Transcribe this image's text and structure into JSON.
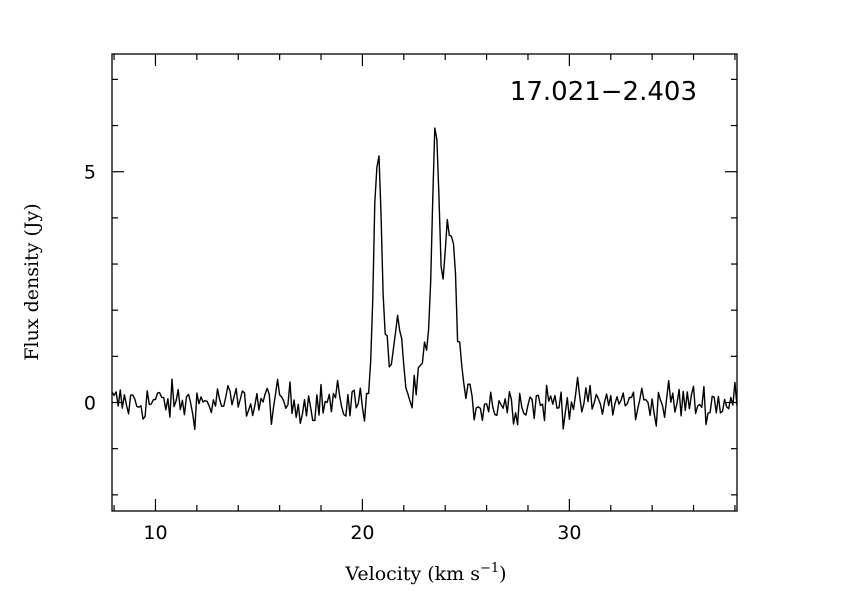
{
  "chart_data": {
    "type": "line",
    "annotation": "17.021−2.403",
    "xlabel": "Velocity (km s",
    "xlabel_sup": "−1",
    "xlabel_end": ")",
    "ylabel": "Flux density (Jy)",
    "xlim": [
      7.9,
      38.1
    ],
    "ylim": [
      -2.35,
      7.55
    ],
    "x_ticks": [
      10,
      20,
      30
    ],
    "x_tick_labels": [
      "10",
      "20",
      "30"
    ],
    "y_ticks": [
      0,
      5
    ],
    "y_tick_labels": [
      "0",
      "5"
    ],
    "x_minor_step": 2,
    "y_minor_step": 1,
    "grid": false,
    "series": [
      {
        "line_color": "#000000",
        "components": [
          {
            "center": 20.75,
            "amplitude": 5.35,
            "width": 0.2
          },
          {
            "center": 21.8,
            "amplitude": 1.7,
            "width": 0.17
          },
          {
            "center": 21.35,
            "amplitude": 0.75,
            "width": 0.22
          },
          {
            "center": 23.55,
            "amplitude": 5.6,
            "width": 0.17
          },
          {
            "center": 24.15,
            "amplitude": 3.6,
            "width": 0.24
          },
          {
            "center": 23.05,
            "amplitude": 0.9,
            "width": 0.28
          },
          {
            "center": 24.55,
            "amplitude": 1.3,
            "width": 0.2
          }
        ],
        "noise_rms": 0.22,
        "x_step": 0.1
      }
    ]
  }
}
